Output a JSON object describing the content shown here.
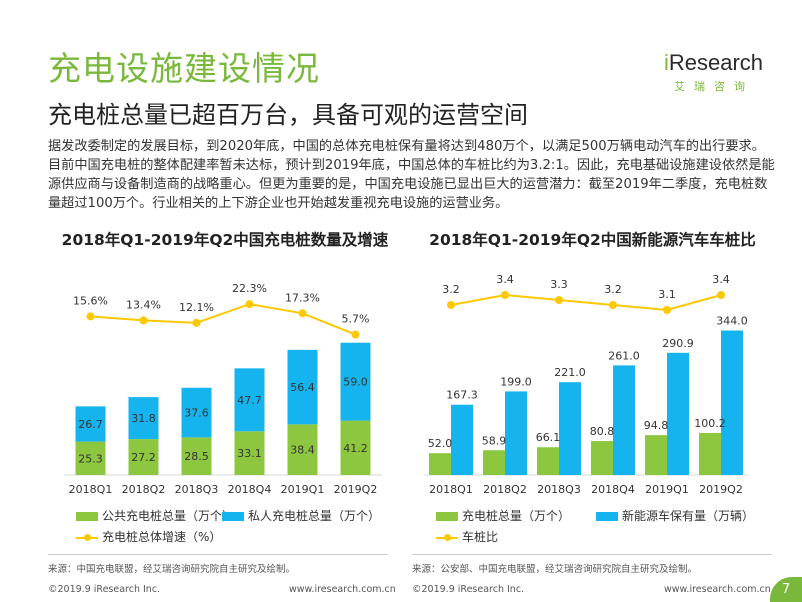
{
  "page": {
    "title": "充电设施建设情况",
    "subtitle": "充电桩总量已超百万台，具备可观的运营空间",
    "paragraph": "据发改委制定的发展目标，到2020年底，中国的总体充电桩保有量将达到480万个，以满足500万辆电动汽车的出行要求。目前中国充电桩的整体配建率暂未达标，预计到2019年底，中国总体的车桩比约为3.2:1。因此，充电基础设施建设依然是能源供应商与设备制造商的战略重心。但更为重要的是，中国充电设施已显出巨大的运营潜力：截至2019年二季度，充电桩数量超过100万个。行业相关的上下游企业也开始越发重视充电设施的运营业务。",
    "page_number": "7"
  },
  "logo": {
    "brand_i": "i",
    "brand_rest": "Research",
    "sub": "艾瑞咨询"
  },
  "colors": {
    "green": "#8dc63f",
    "blue": "#16b4ee",
    "yellow": "#fcc800",
    "title_green": "#7ab83c"
  },
  "footer": {
    "left_source": "来源：中国充电联盟，经艾瑞咨询研究院自主研究及绘制。",
    "right_source": "来源：公安部、中国充电联盟，经艾瑞咨询研究院自主研究及绘制。",
    "left_copyright": "©2019.9  iResearch Inc.",
    "left_url": "www.iresearch.com.cn",
    "right_copyright": "©2019.9  iResearch Inc.",
    "right_url": "www.iresearch.com.cn"
  },
  "chart_data": [
    {
      "type": "bar",
      "stacked": true,
      "title": "2018年Q1-2019年Q2中国充电桩数量及增速",
      "categories": [
        "2018Q1",
        "2018Q2",
        "2018Q3",
        "2018Q4",
        "2019Q1",
        "2019Q2"
      ],
      "series": [
        {
          "name": "公共充电桩总量（万个）",
          "values": [
            25.3,
            27.2,
            28.5,
            33.1,
            38.4,
            41.2
          ],
          "labels": [
            "25.3",
            "27.2",
            "28.5",
            "33.1",
            "38.4",
            "41.2"
          ]
        },
        {
          "name": "私人充电桩总量（万个）",
          "values": [
            26.7,
            31.8,
            37.6,
            47.7,
            56.4,
            59.0
          ],
          "labels": [
            "26.7",
            "31.8",
            "37.6",
            "47.7",
            "56.4",
            "59.0"
          ]
        }
      ],
      "line": {
        "name": "充电桩总体增速（%）",
        "values": [
          15.6,
          13.4,
          12.1,
          22.3,
          17.3,
          5.7
        ],
        "labels": [
          "15.6%",
          "13.4%",
          "12.1%",
          "22.3%",
          "17.3%",
          "5.7%"
        ]
      },
      "legend": [
        "公共充电桩总量（万个）",
        "私人充电桩总量（万个）",
        "充电桩总体增速（%）"
      ]
    },
    {
      "type": "bar",
      "stacked": false,
      "title": "2018年Q1-2019年Q2中国新能源汽车车桩比",
      "categories": [
        "2018Q1",
        "2018Q2",
        "2018Q3",
        "2018Q4",
        "2019Q1",
        "2019Q2"
      ],
      "series": [
        {
          "name": "充电桩总量（万个）",
          "values": [
            52.0,
            58.9,
            66.1,
            80.8,
            94.8,
            100.2
          ],
          "labels": [
            "52.0",
            "58.9",
            "66.1",
            "80.8",
            "94.8",
            "100.2"
          ]
        },
        {
          "name": "新能源车保有量（万辆）",
          "values": [
            167.3,
            199.0,
            221.0,
            261.0,
            290.9,
            344.0
          ],
          "labels": [
            "167.3",
            "199.0",
            "221.0",
            "261.0",
            "290.9",
            "344.0"
          ]
        }
      ],
      "line": {
        "name": "车桩比",
        "values": [
          3.2,
          3.4,
          3.3,
          3.2,
          3.1,
          3.4
        ],
        "labels": [
          "3.2",
          "3.4",
          "3.3",
          "3.2",
          "3.1",
          "3.4"
        ]
      },
      "legend": [
        "充电桩总量（万个）",
        "新能源车保有量（万辆）",
        "车桩比"
      ]
    }
  ]
}
